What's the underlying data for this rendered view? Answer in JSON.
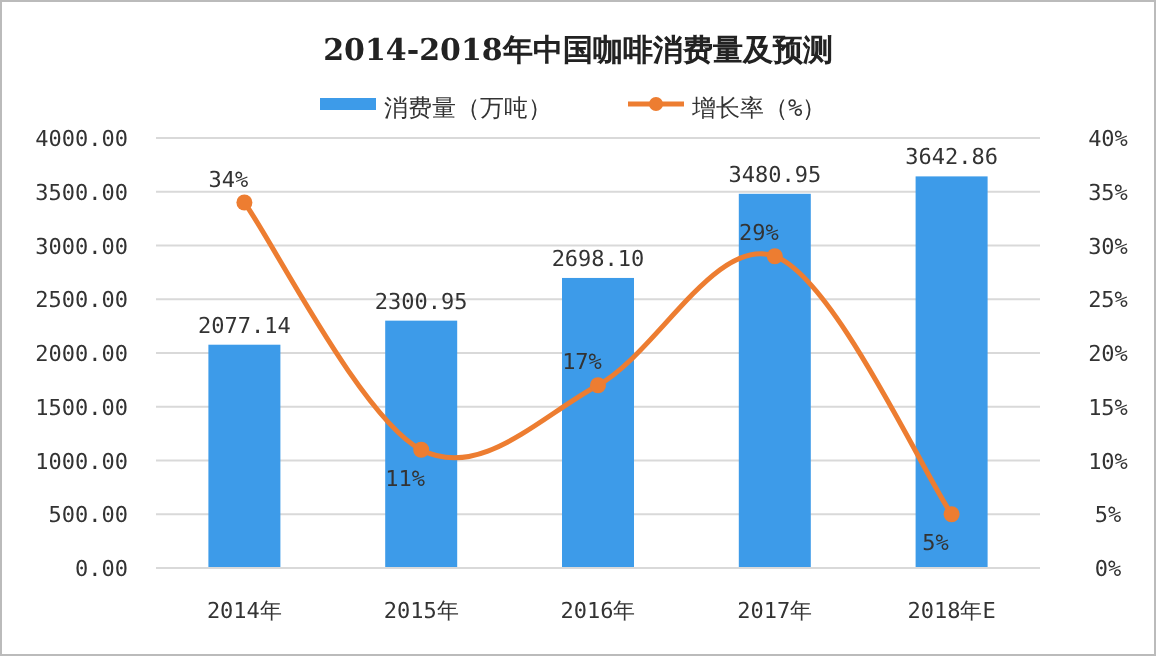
{
  "chart_data": {
    "type": "bar",
    "title": "2014-2018年中国咖啡消费量及预测",
    "categories": [
      "2014年",
      "2015年",
      "2016年",
      "2017年",
      "2018年E"
    ],
    "series": [
      {
        "name": "消费量（万吨）",
        "color": "#3d9be9",
        "values": [
          2077.14,
          2300.95,
          2698.1,
          3480.95,
          3642.86
        ],
        "value_labels": [
          "2077.14",
          "2300.95",
          "2698.10",
          "3480.95",
          "3642.86"
        ]
      },
      {
        "name": "增长率（%）",
        "type": "line",
        "axis": "y2",
        "color": "#ed7d31",
        "marker": "circle",
        "values": [
          34,
          11,
          17,
          29,
          5
        ],
        "value_labels": [
          "34%",
          "11%",
          "17%",
          "29%",
          "5%"
        ]
      }
    ],
    "ylim": [
      0,
      4000
    ],
    "yticks": [
      {
        "value": 0,
        "label": "0.00"
      },
      {
        "value": 500,
        "label": "500.00"
      },
      {
        "value": 1000,
        "label": "1000.00"
      },
      {
        "value": 1500,
        "label": "1500.00"
      },
      {
        "value": 2000,
        "label": "2000.00"
      },
      {
        "value": 2500,
        "label": "2500.00"
      },
      {
        "value": 3000,
        "label": "3000.00"
      },
      {
        "value": 3500,
        "label": "3500.00"
      },
      {
        "value": 4000,
        "label": "4000.00"
      }
    ],
    "y2lim": [
      0,
      40
    ],
    "y2ticks": [
      {
        "value": 0,
        "label": "0%"
      },
      {
        "value": 5,
        "label": "5%"
      },
      {
        "value": 10,
        "label": "10%"
      },
      {
        "value": 15,
        "label": "15%"
      },
      {
        "value": 20,
        "label": "20%"
      },
      {
        "value": 25,
        "label": "25%"
      },
      {
        "value": 30,
        "label": "30%"
      },
      {
        "value": 35,
        "label": "35%"
      },
      {
        "value": 40,
        "label": "40%"
      }
    ],
    "grid": "y",
    "legend": "top"
  }
}
